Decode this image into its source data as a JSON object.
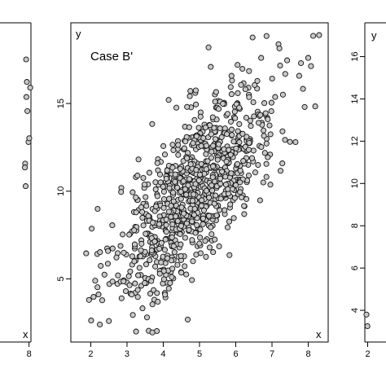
{
  "chart_data": [
    {
      "type": "scatter",
      "panel": "left",
      "title": "",
      "xlabel": "x",
      "ylabel": "",
      "xlim": [
        0.3,
        8.4
      ],
      "ylim": [
        1.5,
        18.5
      ],
      "x_ticks": [
        "8"
      ],
      "x_tick_values": [
        8
      ],
      "y_ticks": [],
      "points": {
        "x": [
          7.65,
          7.9,
          8.05,
          8.25,
          7.55,
          7.4,
          7.45,
          7.3,
          7.2,
          7.15
        ],
        "y": [
          13.8,
          12.15,
          12.35,
          15.05,
          15.35,
          16.55,
          14.55,
          9.8,
          11.0,
          10.8
        ]
      }
    },
    {
      "type": "scatter",
      "panel": "center",
      "title": "Case B'",
      "xlabel": "x",
      "ylabel": "y",
      "xlim": [
        1.45,
        8.55
      ],
      "ylim": [
        1.4,
        19.6
      ],
      "x_ticks": [
        "2",
        "3",
        "4",
        "5",
        "6",
        "7",
        "8"
      ],
      "x_tick_values": [
        2,
        3,
        4,
        5,
        6,
        7,
        8
      ],
      "y_ticks": [
        "5",
        "10",
        "15"
      ],
      "y_tick_values": [
        5,
        10,
        15
      ],
      "series": [
        {
          "n_points": 900,
          "x_mean": 4.9,
          "x_sd": 1.12,
          "y_mean": 10.2,
          "y_sd": 3.1,
          "correlation": 0.72,
          "x_range": [
            1.85,
            8.4
          ],
          "y_range": [
            1.9,
            19.0
          ]
        }
      ],
      "outliers": {
        "x": [
          1.95,
          2.25,
          2.5,
          2.75,
          3.2,
          3.4,
          3.55,
          3.7,
          3.85,
          4.05,
          5.25,
          6.05,
          6.7,
          6.85,
          7.3,
          7.65,
          7.8,
          7.9,
          8.0,
          8.3
        ],
        "y": [
          3.8,
          2.4,
          2.6,
          5.2,
          6.0,
          7.0,
          2.8,
          1.95,
          3.7,
          4.1,
          18.2,
          17.2,
          17.6,
          18.85,
          15.5,
          12.8,
          17.3,
          14.8,
          17.6,
          18.9
        ]
      }
    },
    {
      "type": "scatter",
      "panel": "right",
      "title": "",
      "xlabel": "",
      "ylabel": "y",
      "xlim": [
        1.4,
        8.6
      ],
      "ylim": [
        2.5,
        17.6
      ],
      "x_ticks": [
        "2"
      ],
      "x_tick_values": [
        2
      ],
      "y_ticks": [
        "4",
        "6",
        "8",
        "10",
        "12",
        "14",
        "16"
      ],
      "y_tick_values": [
        4,
        6,
        8,
        10,
        12,
        14,
        16
      ],
      "points": {
        "x": [
          1.75,
          1.95
        ],
        "y": [
          3.8,
          3.25
        ]
      }
    }
  ],
  "colors": {
    "point_fill": "#c8c8c8",
    "point_stroke": "#111111",
    "axis": "#000000",
    "background": "#ffffff"
  }
}
